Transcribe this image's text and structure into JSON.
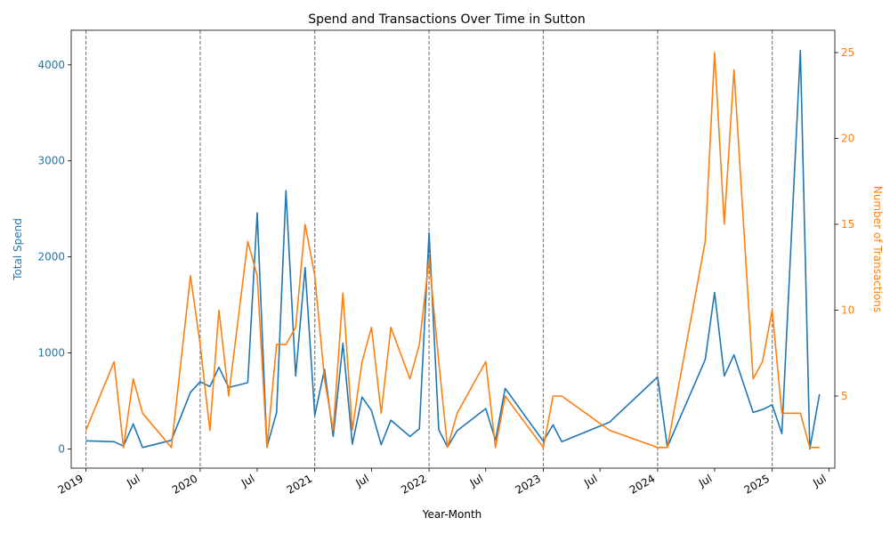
{
  "chart_data": {
    "type": "line",
    "title": "Spend and Transactions Over Time in Sutton",
    "xlabel": "Year-Month",
    "ylabel_left": "Total Spend",
    "ylabel_right": "Number of Transactions",
    "colors": {
      "spend": "#1f77b4",
      "transactions": "#ff7f0e",
      "year_marker": "#808080"
    },
    "x_range": [
      "2018-11-15",
      "2025-07-20"
    ],
    "ylim_left": [
      -200,
      4360
    ],
    "ylim_right": [
      0.8,
      26.3
    ],
    "yticks_left": [
      0,
      1000,
      2000,
      3000,
      4000
    ],
    "yticks_right": [
      5,
      10,
      15,
      20,
      25
    ],
    "x_ticks": [
      {
        "date": "2019-01-01",
        "label": "2019"
      },
      {
        "date": "2019-07-01",
        "label": "Jul"
      },
      {
        "date": "2020-01-01",
        "label": "2020"
      },
      {
        "date": "2020-07-01",
        "label": "Jul"
      },
      {
        "date": "2021-01-01",
        "label": "2021"
      },
      {
        "date": "2021-07-01",
        "label": "Jul"
      },
      {
        "date": "2022-01-01",
        "label": "2022"
      },
      {
        "date": "2022-07-01",
        "label": "Jul"
      },
      {
        "date": "2023-01-01",
        "label": "2023"
      },
      {
        "date": "2023-07-01",
        "label": "Jul"
      },
      {
        "date": "2024-01-01",
        "label": "2024"
      },
      {
        "date": "2024-07-01",
        "label": "Jul"
      },
      {
        "date": "2025-01-01",
        "label": "2025"
      },
      {
        "date": "2025-07-01",
        "label": "Jul"
      }
    ],
    "year_markers": [
      "2019-01-01",
      "2020-01-01",
      "2021-01-01",
      "2022-01-01",
      "2023-01-01",
      "2024-01-01",
      "2025-01-01"
    ],
    "series": [
      {
        "name": "Total Spend",
        "axis": "left",
        "points": [
          [
            "2019-01-01",
            85
          ],
          [
            "2019-04-01",
            75
          ],
          [
            "2019-05-01",
            30
          ],
          [
            "2019-06-01",
            260
          ],
          [
            "2019-07-01",
            15
          ],
          [
            "2019-10-01",
            90
          ],
          [
            "2019-12-01",
            590
          ],
          [
            "2020-01-01",
            700
          ],
          [
            "2020-02-01",
            650
          ],
          [
            "2020-03-01",
            850
          ],
          [
            "2020-04-01",
            640
          ],
          [
            "2020-06-01",
            690
          ],
          [
            "2020-07-01",
            2460
          ],
          [
            "2020-08-01",
            20
          ],
          [
            "2020-09-01",
            380
          ],
          [
            "2020-10-01",
            2690
          ],
          [
            "2020-11-01",
            760
          ],
          [
            "2020-12-01",
            1890
          ],
          [
            "2021-01-01",
            350
          ],
          [
            "2021-02-01",
            830
          ],
          [
            "2021-03-01",
            130
          ],
          [
            "2021-04-01",
            1100
          ],
          [
            "2021-05-01",
            50
          ],
          [
            "2021-06-01",
            540
          ],
          [
            "2021-07-01",
            400
          ],
          [
            "2021-08-01",
            45
          ],
          [
            "2021-09-01",
            300
          ],
          [
            "2021-11-01",
            130
          ],
          [
            "2021-12-01",
            210
          ],
          [
            "2022-01-01",
            2250
          ],
          [
            "2022-02-01",
            200
          ],
          [
            "2022-03-01",
            20
          ],
          [
            "2022-04-01",
            190
          ],
          [
            "2022-07-01",
            420
          ],
          [
            "2022-08-01",
            90
          ],
          [
            "2022-09-01",
            630
          ],
          [
            "2023-01-01",
            80
          ],
          [
            "2023-02-01",
            250
          ],
          [
            "2023-03-01",
            75
          ],
          [
            "2023-08-01",
            280
          ],
          [
            "2024-01-01",
            750
          ],
          [
            "2024-02-01",
            20
          ],
          [
            "2024-06-01",
            930
          ],
          [
            "2024-07-01",
            1630
          ],
          [
            "2024-08-01",
            760
          ],
          [
            "2024-09-01",
            980
          ],
          [
            "2024-11-01",
            380
          ],
          [
            "2024-12-01",
            410
          ],
          [
            "2025-01-01",
            460
          ],
          [
            "2025-02-01",
            160
          ],
          [
            "2025-04-01",
            4150
          ],
          [
            "2025-05-01",
            0
          ],
          [
            "2025-06-01",
            570
          ]
        ]
      },
      {
        "name": "Number of Transactions",
        "axis": "right",
        "points": [
          [
            "2019-01-01",
            3
          ],
          [
            "2019-04-01",
            7
          ],
          [
            "2019-05-01",
            2
          ],
          [
            "2019-06-01",
            6
          ],
          [
            "2019-07-01",
            4
          ],
          [
            "2019-10-01",
            2
          ],
          [
            "2019-12-01",
            12
          ],
          [
            "2020-01-01",
            8
          ],
          [
            "2020-02-01",
            3
          ],
          [
            "2020-03-01",
            10
          ],
          [
            "2020-04-01",
            5
          ],
          [
            "2020-06-01",
            14
          ],
          [
            "2020-07-01",
            12
          ],
          [
            "2020-08-01",
            2
          ],
          [
            "2020-09-01",
            8
          ],
          [
            "2020-10-01",
            8
          ],
          [
            "2020-11-01",
            9
          ],
          [
            "2020-12-01",
            15
          ],
          [
            "2021-01-01",
            12
          ],
          [
            "2021-02-01",
            6
          ],
          [
            "2021-03-01",
            3
          ],
          [
            "2021-04-01",
            11
          ],
          [
            "2021-05-01",
            3
          ],
          [
            "2021-06-01",
            7
          ],
          [
            "2021-07-01",
            9
          ],
          [
            "2021-08-01",
            4
          ],
          [
            "2021-09-01",
            9
          ],
          [
            "2021-11-01",
            6
          ],
          [
            "2021-12-01",
            8
          ],
          [
            "2022-01-01",
            13
          ],
          [
            "2022-02-01",
            7
          ],
          [
            "2022-03-01",
            2
          ],
          [
            "2022-04-01",
            4
          ],
          [
            "2022-07-01",
            7
          ],
          [
            "2022-08-01",
            2
          ],
          [
            "2022-09-01",
            5
          ],
          [
            "2023-01-01",
            2
          ],
          [
            "2023-02-01",
            5
          ],
          [
            "2023-03-01",
            5
          ],
          [
            "2023-08-01",
            3
          ],
          [
            "2024-01-01",
            2
          ],
          [
            "2024-02-01",
            2
          ],
          [
            "2024-06-01",
            14
          ],
          [
            "2024-07-01",
            25
          ],
          [
            "2024-08-01",
            15
          ],
          [
            "2024-09-01",
            24
          ],
          [
            "2024-11-01",
            6
          ],
          [
            "2024-12-01",
            7
          ],
          [
            "2025-01-01",
            10
          ],
          [
            "2025-02-01",
            4
          ],
          [
            "2025-04-01",
            4
          ],
          [
            "2025-05-01",
            2
          ],
          [
            "2025-06-01",
            2
          ]
        ]
      }
    ]
  }
}
